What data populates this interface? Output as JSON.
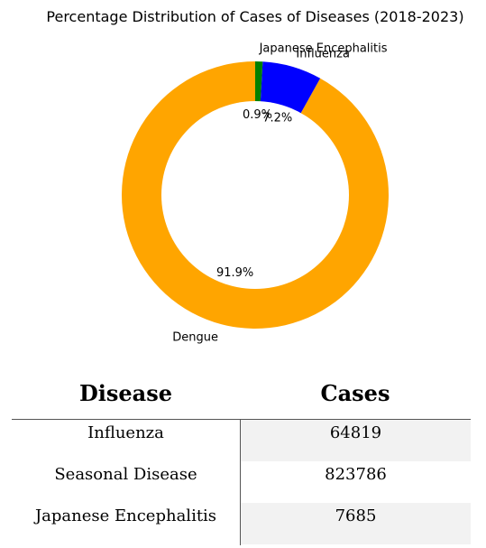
{
  "chart_data": {
    "type": "pie",
    "style": "donut",
    "title": "Percentage Distribution of Cases of Diseases (2018-2023)",
    "slices": [
      {
        "label": "Dengue",
        "value": 91.9,
        "pct_text": "91.9%",
        "color": "#FFA500"
      },
      {
        "label": "Influenza",
        "value": 7.2,
        "pct_text": "7.2%",
        "color": "#0000FF"
      },
      {
        "label": "Japanese Encephalitis",
        "value": 0.9,
        "pct_text": "0.9%",
        "color": "#008000"
      }
    ]
  },
  "table": {
    "headers": [
      "Disease",
      "Cases"
    ],
    "rows": [
      {
        "disease": "Influenza",
        "cases": "64819"
      },
      {
        "disease": "Seasonal Disease",
        "cases": "823786"
      },
      {
        "disease": "Japanese Encephalitis",
        "cases": "7685"
      }
    ]
  }
}
